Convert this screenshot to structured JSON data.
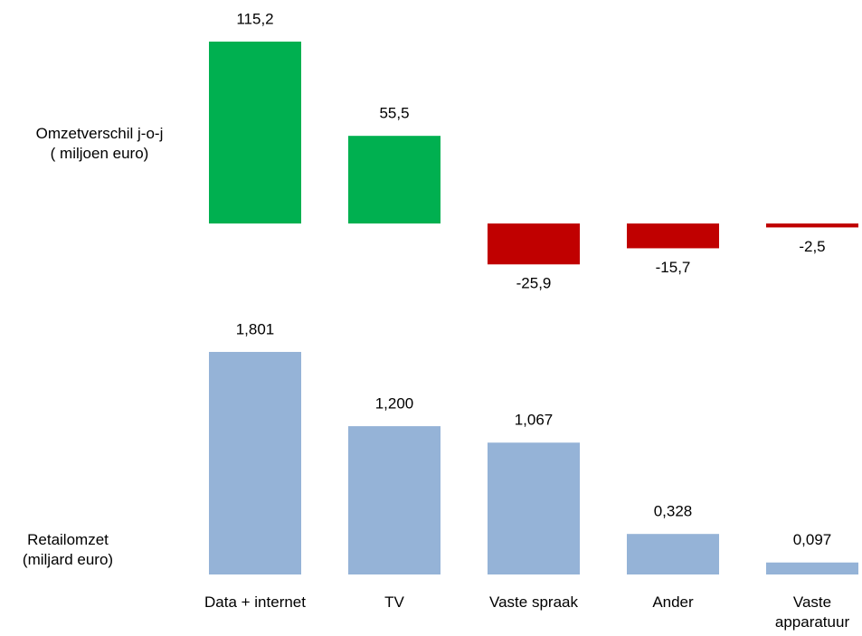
{
  "chart_data": [
    {
      "type": "bar",
      "ylabel": "Omzetverschil j-o-j\n( miljoen euro)",
      "values": [
        115.2,
        55.5,
        -25.9,
        -15.7,
        -2.5
      ],
      "value_labels": [
        "115,2",
        "55,5",
        "-25,9",
        "-15,7",
        "-2,5"
      ],
      "colors": [
        "#00b050",
        "#00b050",
        "#c00000",
        "#c00000",
        "#c00000"
      ],
      "ylim": [
        -30,
        120
      ]
    },
    {
      "type": "bar",
      "ylabel": "Retailomzet\n(miljard euro)",
      "categories": [
        "Data + internet",
        "TV",
        "Vaste spraak",
        "Ander",
        "Vaste\napparatuur"
      ],
      "values": [
        1.801,
        1.2,
        1.067,
        0.328,
        0.097
      ],
      "value_labels": [
        "1,801",
        "1,200",
        "1,067",
        "0,328",
        "0,097"
      ],
      "color": "#95b3d7",
      "ylim": [
        0,
        2
      ]
    }
  ]
}
